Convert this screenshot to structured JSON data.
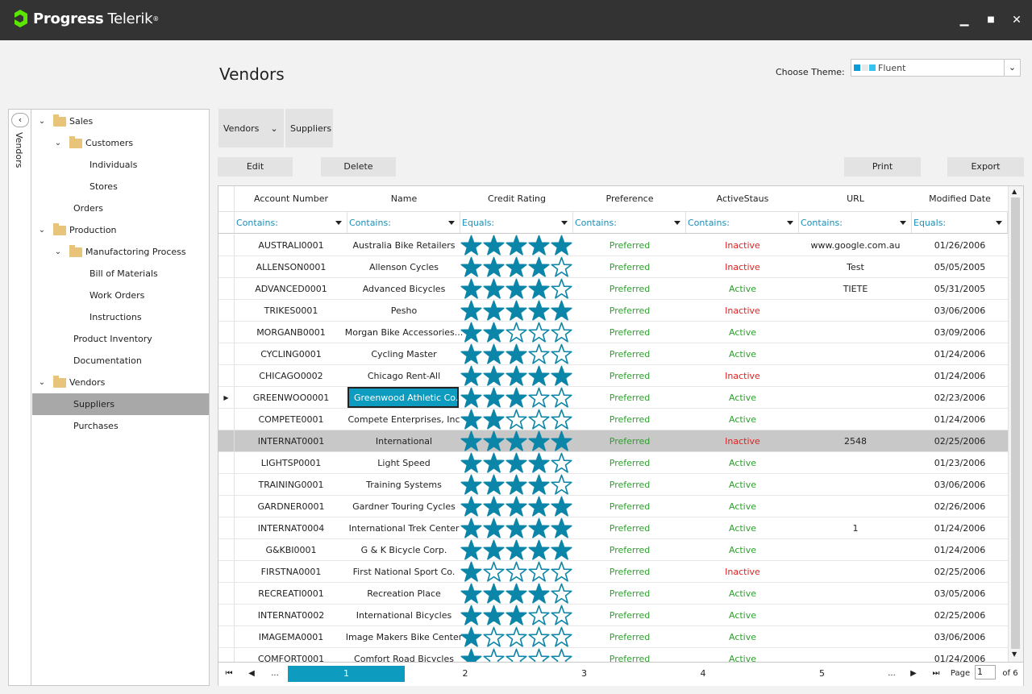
{
  "header": {
    "brand": "Progress",
    "brand2": "Telerik",
    "trademark": "®"
  },
  "window": {
    "minimize": "▁",
    "maximize": "■",
    "close": "✕"
  },
  "page": {
    "title": "Vendors"
  },
  "theme": {
    "label": "Choose Theme:",
    "value": "Fluent",
    "swatches": [
      "#0a9bd8",
      "#e9e9e9",
      "#36c4ef"
    ]
  },
  "side_panel": {
    "collapse_label": "Vendors",
    "collapse_icon": "‹"
  },
  "tree": [
    {
      "label": "Sales",
      "level": 0,
      "folder": true,
      "expander": "⌄"
    },
    {
      "label": "Customers",
      "level": 1,
      "folder": true,
      "expander": "⌄"
    },
    {
      "label": "Individuals",
      "level": 2
    },
    {
      "label": "Stores",
      "level": 2
    },
    {
      "label": "Orders",
      "level": 1
    },
    {
      "label": "Production",
      "level": 0,
      "folder": true,
      "expander": "⌄"
    },
    {
      "label": "Manufactoring Process",
      "level": 1,
      "folder": true,
      "expander": "⌄"
    },
    {
      "label": "Bill of Materials",
      "level": 2
    },
    {
      "label": "Work Orders",
      "level": 2
    },
    {
      "label": "Instructions",
      "level": 2
    },
    {
      "label": "Product Inventory",
      "level": 1
    },
    {
      "label": "Documentation",
      "level": 1
    },
    {
      "label": "Vendors",
      "level": 0,
      "folder": true,
      "expander": "⌄"
    },
    {
      "label": "Suppliers",
      "level": 1,
      "selected": true
    },
    {
      "label": "Purchases",
      "level": 1
    }
  ],
  "tabs": {
    "vendors": "Vendors",
    "vendors_arrow": "⌄",
    "suppliers": "Suppliers"
  },
  "toolbar": {
    "edit": "Edit",
    "delete": "Delete",
    "print": "Print",
    "export": "Export"
  },
  "grid": {
    "columns": [
      "Account Number",
      "Name",
      "Credit Rating",
      "Preference",
      "ActiveStaus",
      "URL",
      "Modified Date"
    ],
    "filters": [
      "Contains:",
      "Contains:",
      "Equals:",
      "Contains:",
      "Contains:",
      "Contains:",
      "Equals:"
    ],
    "current_row_marker": "▶",
    "rows": [
      {
        "account": "AUSTRALI0001",
        "name": "Australia Bike Retailers",
        "rating": 5,
        "preference": "Preferred",
        "status": "Inactive",
        "url": "www.google.com.au",
        "date": "01/26/2006"
      },
      {
        "account": "ALLENSON0001",
        "name": "Allenson Cycles",
        "rating": 4,
        "preference": "Preferred",
        "status": "Inactive",
        "url": "Test",
        "date": "05/05/2005"
      },
      {
        "account": "ADVANCED0001",
        "name": "Advanced Bicycles",
        "rating": 4,
        "preference": "Preferred",
        "status": "Active",
        "url": "TIETE",
        "date": "05/31/2005"
      },
      {
        "account": "TRIKES0001",
        "name": "Pesho",
        "rating": 5,
        "preference": "Preferred",
        "status": "Inactive",
        "url": "",
        "date": "03/06/2006"
      },
      {
        "account": "MORGANB0001",
        "name": "Morgan Bike Accessories...",
        "rating": 2,
        "preference": "Preferred",
        "status": "Active",
        "url": "",
        "date": "03/09/2006"
      },
      {
        "account": "CYCLING0001",
        "name": "Cycling Master",
        "rating": 3,
        "preference": "Preferred",
        "status": "Active",
        "url": "",
        "date": "01/24/2006"
      },
      {
        "account": "CHICAGO0002",
        "name": "Chicago Rent-All",
        "rating": 5,
        "preference": "Preferred",
        "status": "Inactive",
        "url": "",
        "date": "01/24/2006"
      },
      {
        "account": "GREENWOO0001",
        "name": "Greenwood Athletic Co...",
        "rating": 3,
        "preference": "Preferred",
        "status": "Active",
        "url": "",
        "date": "02/23/2006",
        "editing": true
      },
      {
        "account": "COMPETE0001",
        "name": "Compete Enterprises, Inc",
        "rating": 2,
        "preference": "Preferred",
        "status": "Active",
        "url": "",
        "date": "01/24/2006"
      },
      {
        "account": "INTERNAT0001",
        "name": "International",
        "rating": 5,
        "preference": "Preferred",
        "status": "Inactive",
        "url": "2548",
        "date": "02/25/2006",
        "current": true
      },
      {
        "account": "LIGHTSP0001",
        "name": "Light Speed",
        "rating": 4,
        "preference": "Preferred",
        "status": "Active",
        "url": "",
        "date": "01/23/2006"
      },
      {
        "account": "TRAINING0001",
        "name": "Training Systems",
        "rating": 4,
        "preference": "Preferred",
        "status": "Active",
        "url": "",
        "date": "03/06/2006"
      },
      {
        "account": "GARDNER0001",
        "name": "Gardner Touring Cycles",
        "rating": 5,
        "preference": "Preferred",
        "status": "Active",
        "url": "",
        "date": "02/26/2006"
      },
      {
        "account": "INTERNAT0004",
        "name": "International Trek Center",
        "rating": 5,
        "preference": "Preferred",
        "status": "Active",
        "url": "1",
        "date": "01/24/2006"
      },
      {
        "account": "G&KBI0001",
        "name": "G & K Bicycle Corp.",
        "rating": 5,
        "preference": "Preferred",
        "status": "Active",
        "url": "",
        "date": "01/24/2006"
      },
      {
        "account": "FIRSTNA0001",
        "name": "First National Sport Co.",
        "rating": 1,
        "preference": "Preferred",
        "status": "Inactive",
        "url": "",
        "date": "02/25/2006"
      },
      {
        "account": "RECREATI0001",
        "name": "Recreation Place",
        "rating": 4,
        "preference": "Preferred",
        "status": "Active",
        "url": "",
        "date": "03/05/2006"
      },
      {
        "account": "INTERNAT0002",
        "name": "International Bicycles",
        "rating": 3,
        "preference": "Preferred",
        "status": "Active",
        "url": "",
        "date": "02/25/2006"
      },
      {
        "account": "IMAGEMA0001",
        "name": "Image Makers Bike Center",
        "rating": 1,
        "preference": "Preferred",
        "status": "Active",
        "url": "",
        "date": "03/06/2006"
      },
      {
        "account": "COMFORT0001",
        "name": "Comfort Road Bicycles",
        "rating": 1,
        "preference": "Preferred",
        "status": "Active",
        "url": "",
        "date": "01/24/2006"
      }
    ]
  },
  "pager": {
    "first": "⏮",
    "prev": "◀",
    "ellipsis_left": "...",
    "pages": [
      "1",
      "2",
      "3",
      "4",
      "5"
    ],
    "current_page_index": 0,
    "ellipsis_right": "...",
    "next": "▶",
    "last": "⏭",
    "page_label": "Page",
    "page_value": "1",
    "of_label": "of 6"
  },
  "colors": {
    "accent": "#0e9bc0",
    "star": "#0c86a8",
    "preferred": "#2e9e2e",
    "inactive": "#e02020",
    "active": "#2e9e2e"
  },
  "icons": {
    "filter": "funnel-icon",
    "folder": "folder-icon",
    "star": "star-icon"
  }
}
